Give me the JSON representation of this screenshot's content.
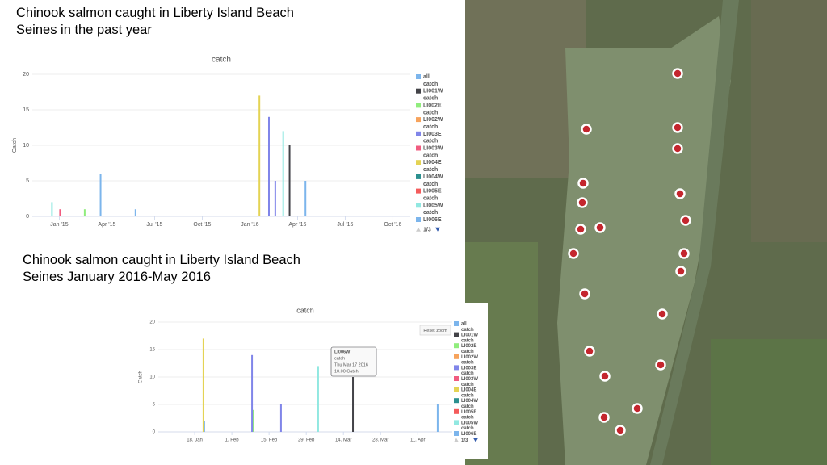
{
  "headings": [
    "Chinook salmon caught in Liberty Island Beach Seines in the past year",
    "Chinook salmon caught in Liberty Island Beach Seines January 2016-May 2016"
  ],
  "chart_data": [
    {
      "type": "bar",
      "title": "catch",
      "y_label": "Catch",
      "ylim": [
        0,
        20
      ],
      "yticks": [
        0,
        5,
        10,
        15,
        20
      ],
      "grid": true,
      "xlim": [
        -1.7,
        22.1
      ],
      "xticks": [
        {
          "value": 0,
          "label": "Jan '15"
        },
        {
          "value": 3,
          "label": "Apr '15"
        },
        {
          "value": 6,
          "label": "Jul '15"
        },
        {
          "value": 9,
          "label": "Oct '15"
        },
        {
          "value": 12,
          "label": "Jan '16"
        },
        {
          "value": 15,
          "label": "Apr '16"
        },
        {
          "value": 18,
          "label": "Jul '16"
        },
        {
          "value": 21,
          "label": "Oct '16"
        }
      ],
      "legend_page": "1/3",
      "series": [
        {
          "name": "all",
          "color": "#7cb5ec",
          "x": [
            2.6,
            4.8
          ],
          "values": [
            6,
            1
          ]
        },
        {
          "name": "catch LI001W",
          "color": "#434348",
          "x": [
            14.5
          ],
          "values": [
            10
          ]
        },
        {
          "name": "catch LI002E",
          "color": "#90ed7d",
          "x": [
            1.6
          ],
          "values": [
            1
          ]
        },
        {
          "name": "catch LI002W",
          "color": "#f7a35c",
          "x": [],
          "values": []
        },
        {
          "name": "catch LI003E",
          "color": "#8085e9",
          "x": [
            13.2,
            13.6
          ],
          "values": [
            14,
            5
          ]
        },
        {
          "name": "catch LI003W",
          "color": "#f15c80",
          "x": [
            0.05
          ],
          "values": [
            1
          ]
        },
        {
          "name": "catch LI004E",
          "color": "#e4d354",
          "x": [
            12.6
          ],
          "values": [
            17
          ]
        },
        {
          "name": "catch LI004W",
          "color": "#2b908f",
          "x": [],
          "values": []
        },
        {
          "name": "catch LI005E",
          "color": "#f45b5b",
          "x": [],
          "values": []
        },
        {
          "name": "catch LI005W",
          "color": "#91e8e1",
          "x": [
            -0.46,
            14.1
          ],
          "values": [
            2,
            12
          ]
        },
        {
          "name": "catch LI006E",
          "color": "#7cb5ec",
          "x": [
            15.5
          ],
          "values": [
            5
          ]
        }
      ]
    },
    {
      "type": "bar",
      "title": "catch",
      "y_label": "Catch",
      "ylim": [
        0,
        20
      ],
      "yticks": [
        0,
        5,
        10,
        15,
        20
      ],
      "grid": true,
      "xlim": [
        3.3,
        114
      ],
      "xticks": [
        {
          "value": 17,
          "label": "18. Jan"
        },
        {
          "value": 31,
          "label": "1. Feb"
        },
        {
          "value": 45,
          "label": "15. Feb"
        },
        {
          "value": 59,
          "label": "29. Feb"
        },
        {
          "value": 73,
          "label": "14. Mar"
        },
        {
          "value": 87,
          "label": "28. Mar"
        },
        {
          "value": 101,
          "label": "11. Apr"
        }
      ],
      "legend_page": "1/3",
      "reset_button": "Reset zoom",
      "tooltip": [
        "LI006W",
        "catch",
        "Thu Mar 17 2016",
        "10.00 Catch"
      ],
      "series": [
        {
          "name": "all",
          "color": "#7cb5ec",
          "x": [
            20.6
          ],
          "values": [
            2
          ]
        },
        {
          "name": "catch LI001W",
          "color": "#434348",
          "x": [
            76.6
          ],
          "values": [
            10
          ]
        },
        {
          "name": "catch LI002E",
          "color": "#90ed7d",
          "x": [
            38.9
          ],
          "values": [
            4
          ]
        },
        {
          "name": "catch LI002W",
          "color": "#f7a35c",
          "x": [],
          "values": []
        },
        {
          "name": "catch LI003E",
          "color": "#8085e9",
          "x": [
            38.6,
            49.5
          ],
          "values": [
            14,
            5
          ]
        },
        {
          "name": "catch LI003W",
          "color": "#f15c80",
          "x": [],
          "values": []
        },
        {
          "name": "catch LI004E",
          "color": "#e4d354",
          "x": [
            20.3
          ],
          "values": [
            17
          ]
        },
        {
          "name": "catch LI004W",
          "color": "#2b908f",
          "x": [],
          "values": []
        },
        {
          "name": "catch LI005E",
          "color": "#f45b5b",
          "x": [],
          "values": []
        },
        {
          "name": "catch LI005W",
          "color": "#91e8e1",
          "x": [
            63.5
          ],
          "values": [
            12
          ]
        },
        {
          "name": "catch LI006E",
          "color": "#7cb5ec",
          "x": [
            108.5
          ],
          "values": [
            5
          ]
        }
      ]
    }
  ]
}
